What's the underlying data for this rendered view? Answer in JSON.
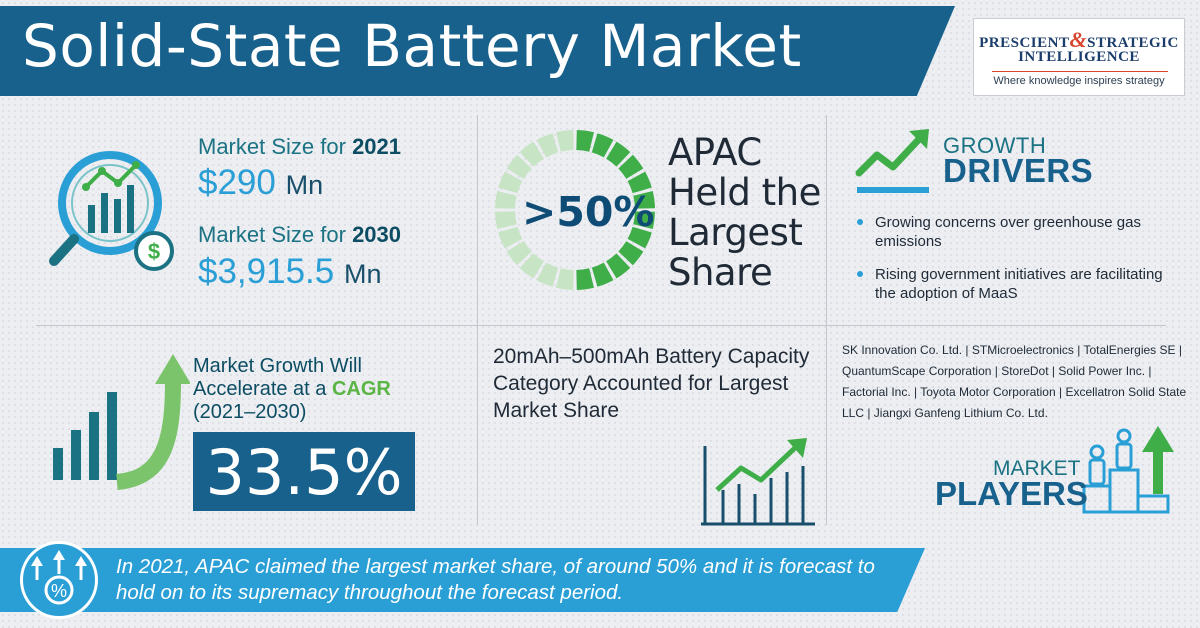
{
  "header": {
    "title": "Solid-State Battery Market",
    "logo": {
      "line1_a": "PRESCIENT",
      "line1_amp": "&",
      "line1_b": "STRATEGIC",
      "line2": "INTELLIGENCE",
      "tagline": "Where knowledge inspires strategy"
    }
  },
  "market_size": {
    "label_2021_prefix": "Market Size for",
    "year_2021": "2021",
    "value_2021": "$290",
    "unit_2021": "Mn",
    "label_2030_prefix": "Market Size for",
    "year_2030": "2030",
    "value_2030": "$3,915.5",
    "unit_2030": "Mn",
    "icon": "magnifier-chart-icon"
  },
  "apac": {
    "percent": ">50%",
    "share_fraction": 0.5,
    "line1": "APAC",
    "line2": "Held the",
    "line3": "Largest",
    "line4": "Share",
    "colors": {
      "filled": "#3fae49",
      "empty": "#c7e4c4"
    }
  },
  "growth_drivers": {
    "title_top": "GROWTH",
    "title_bottom": "DRIVERS",
    "icon": "trend-up-icon",
    "items": [
      "Growing concerns over greenhouse gas emissions",
      "Rising government initiatives are facilitating the adoption of MaaS"
    ]
  },
  "cagr": {
    "line1": "Market Growth Will",
    "line2_prefix": "Accelerate at a",
    "line2_highlight": "CAGR",
    "line3": "(2021–2030)",
    "value": "33.5%",
    "icon": "growth-bars-arrow-icon"
  },
  "capacity": {
    "text": "20mAh–500mAh Battery Capacity Category Accounted for Largest Market Share",
    "icon": "line-chart-icon"
  },
  "players": {
    "list": "SK Innovation Co. Ltd. | STMicroelectronics | TotalEnergies SE | QuantumScape Corporation | StoreDot | Solid Power Inc. | Factorial Inc. | Toyota Motor Corporation | Excellatron Solid State LLC | Jiangxi Ganfeng Lithium Co. Ltd.",
    "title_top": "MARKET",
    "title_bottom": "PLAYERS",
    "icon": "podium-people-icon"
  },
  "footer": {
    "text": "In 2021, APAC claimed the largest market share, of around 50% and it is forecast to hold on to its supremacy throughout the forecast period.",
    "icon": "percent-growth-icon"
  },
  "colors": {
    "primary_blue": "#17618c",
    "light_blue": "#2a9fd6",
    "teal": "#1a7283",
    "green": "#3fae49"
  }
}
